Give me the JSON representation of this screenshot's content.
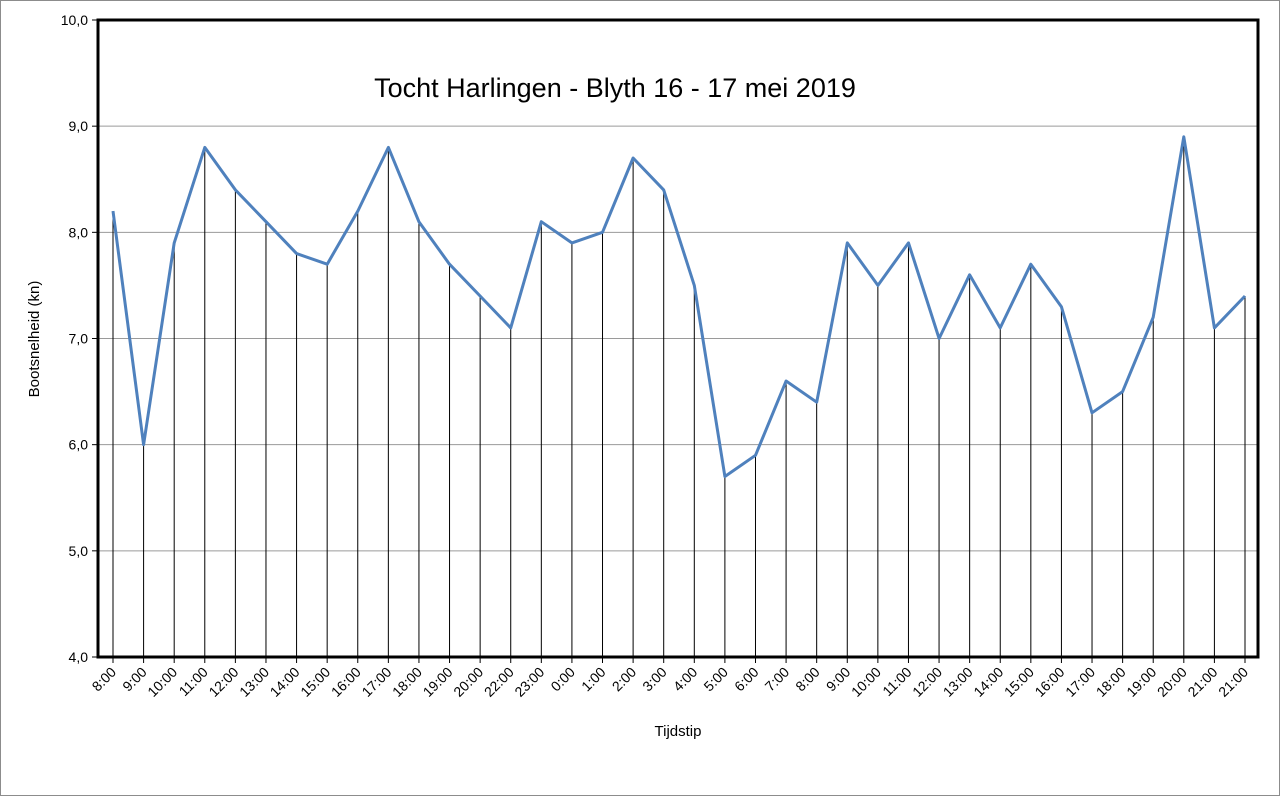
{
  "chart_data": {
    "type": "line",
    "title": "Tocht Harlingen - Blyth  16 - 17 mei 2019",
    "xlabel": "Tijdstip",
    "ylabel": "Bootsnelheid (kn)",
    "ylim": [
      4.0,
      10.0
    ],
    "ytick_labels": [
      "4,0",
      "5,0",
      "6,0",
      "7,0",
      "8,0",
      "9,0",
      "10,0"
    ],
    "grid": "horizontal",
    "drop_lines": true,
    "series_color": "#4f81bd",
    "categories": [
      "8:00",
      "9:00",
      "10:00",
      "11:00",
      "12:00",
      "13:00",
      "14:00",
      "15:00",
      "16:00",
      "17:00",
      "18:00",
      "19:00",
      "20:00",
      "22:00",
      "23:00",
      "0:00",
      "1:00",
      "2:00",
      "3:00",
      "4:00",
      "5:00",
      "6:00",
      "7:00",
      "8:00",
      "9:00",
      "10:00",
      "11:00",
      "12:00",
      "13:00",
      "14:00",
      "15:00",
      "16:00",
      "17:00",
      "18:00",
      "19:00",
      "20:00",
      "21:00",
      "21:00"
    ],
    "values": [
      8.2,
      6.0,
      7.9,
      8.8,
      8.4,
      8.1,
      7.8,
      7.7,
      8.2,
      8.8,
      8.1,
      7.7,
      7.4,
      7.1,
      8.1,
      7.9,
      8.0,
      8.7,
      8.4,
      7.5,
      5.7,
      5.9,
      6.6,
      6.4,
      7.9,
      7.5,
      7.9,
      7.0,
      7.6,
      7.1,
      7.7,
      7.3,
      6.3,
      6.5,
      7.2,
      8.9,
      7.1,
      7.4
    ]
  }
}
